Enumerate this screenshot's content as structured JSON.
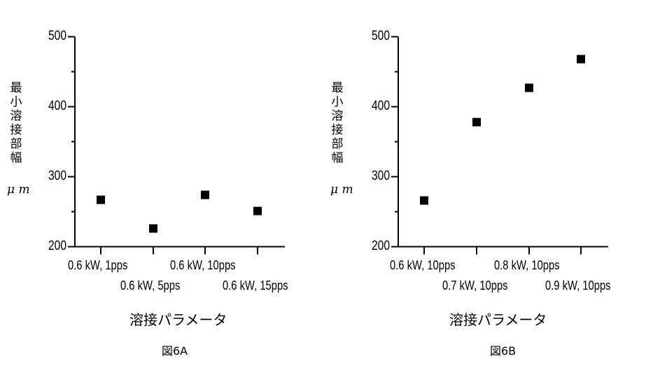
{
  "chart_data": [
    {
      "type": "scatter",
      "caption": "図6A",
      "title": "",
      "xlabel": "溶接パラメータ",
      "ylabel": "最小溶接部幅、μm",
      "ylabel_chars": [
        "最",
        "小",
        "溶",
        "接",
        "部",
        "幅",
        "、"
      ],
      "ylabel_unit": "μ m",
      "ylim": [
        200,
        500
      ],
      "yticks": [
        200,
        300,
        400,
        500
      ],
      "ytick_labels": [
        "200",
        "300",
        "400",
        "500"
      ],
      "minor_yticks": [
        250,
        350,
        450
      ],
      "grid": false,
      "legend": null,
      "categories": [
        "0.6 kW, 1pps",
        "0.6 kW, 5pps",
        "0.6 kW, 10pps",
        "0.6 kW, 15pps"
      ],
      "values": [
        267,
        226,
        274,
        251
      ],
      "marker": "square",
      "marker_color": "#000000"
    },
    {
      "type": "scatter",
      "caption": "図6B",
      "title": "",
      "xlabel": "溶接パラメータ",
      "ylabel": "最小溶接部幅、μm",
      "ylabel_chars": [
        "最",
        "小",
        "溶",
        "接",
        "部",
        "幅",
        "、"
      ],
      "ylabel_unit": "μ m",
      "ylim": [
        200,
        500
      ],
      "yticks": [
        200,
        300,
        400,
        500
      ],
      "ytick_labels": [
        "200",
        "300",
        "400",
        "500"
      ],
      "minor_yticks": [
        250,
        350,
        450
      ],
      "grid": false,
      "legend": null,
      "categories": [
        "0.6 kW, 10pps",
        "0.7 kW, 10pps",
        "0.8 kW, 10pps",
        "0.9 kW, 10pps"
      ],
      "values": [
        266,
        378,
        427,
        468
      ],
      "marker": "square",
      "marker_color": "#000000"
    }
  ]
}
